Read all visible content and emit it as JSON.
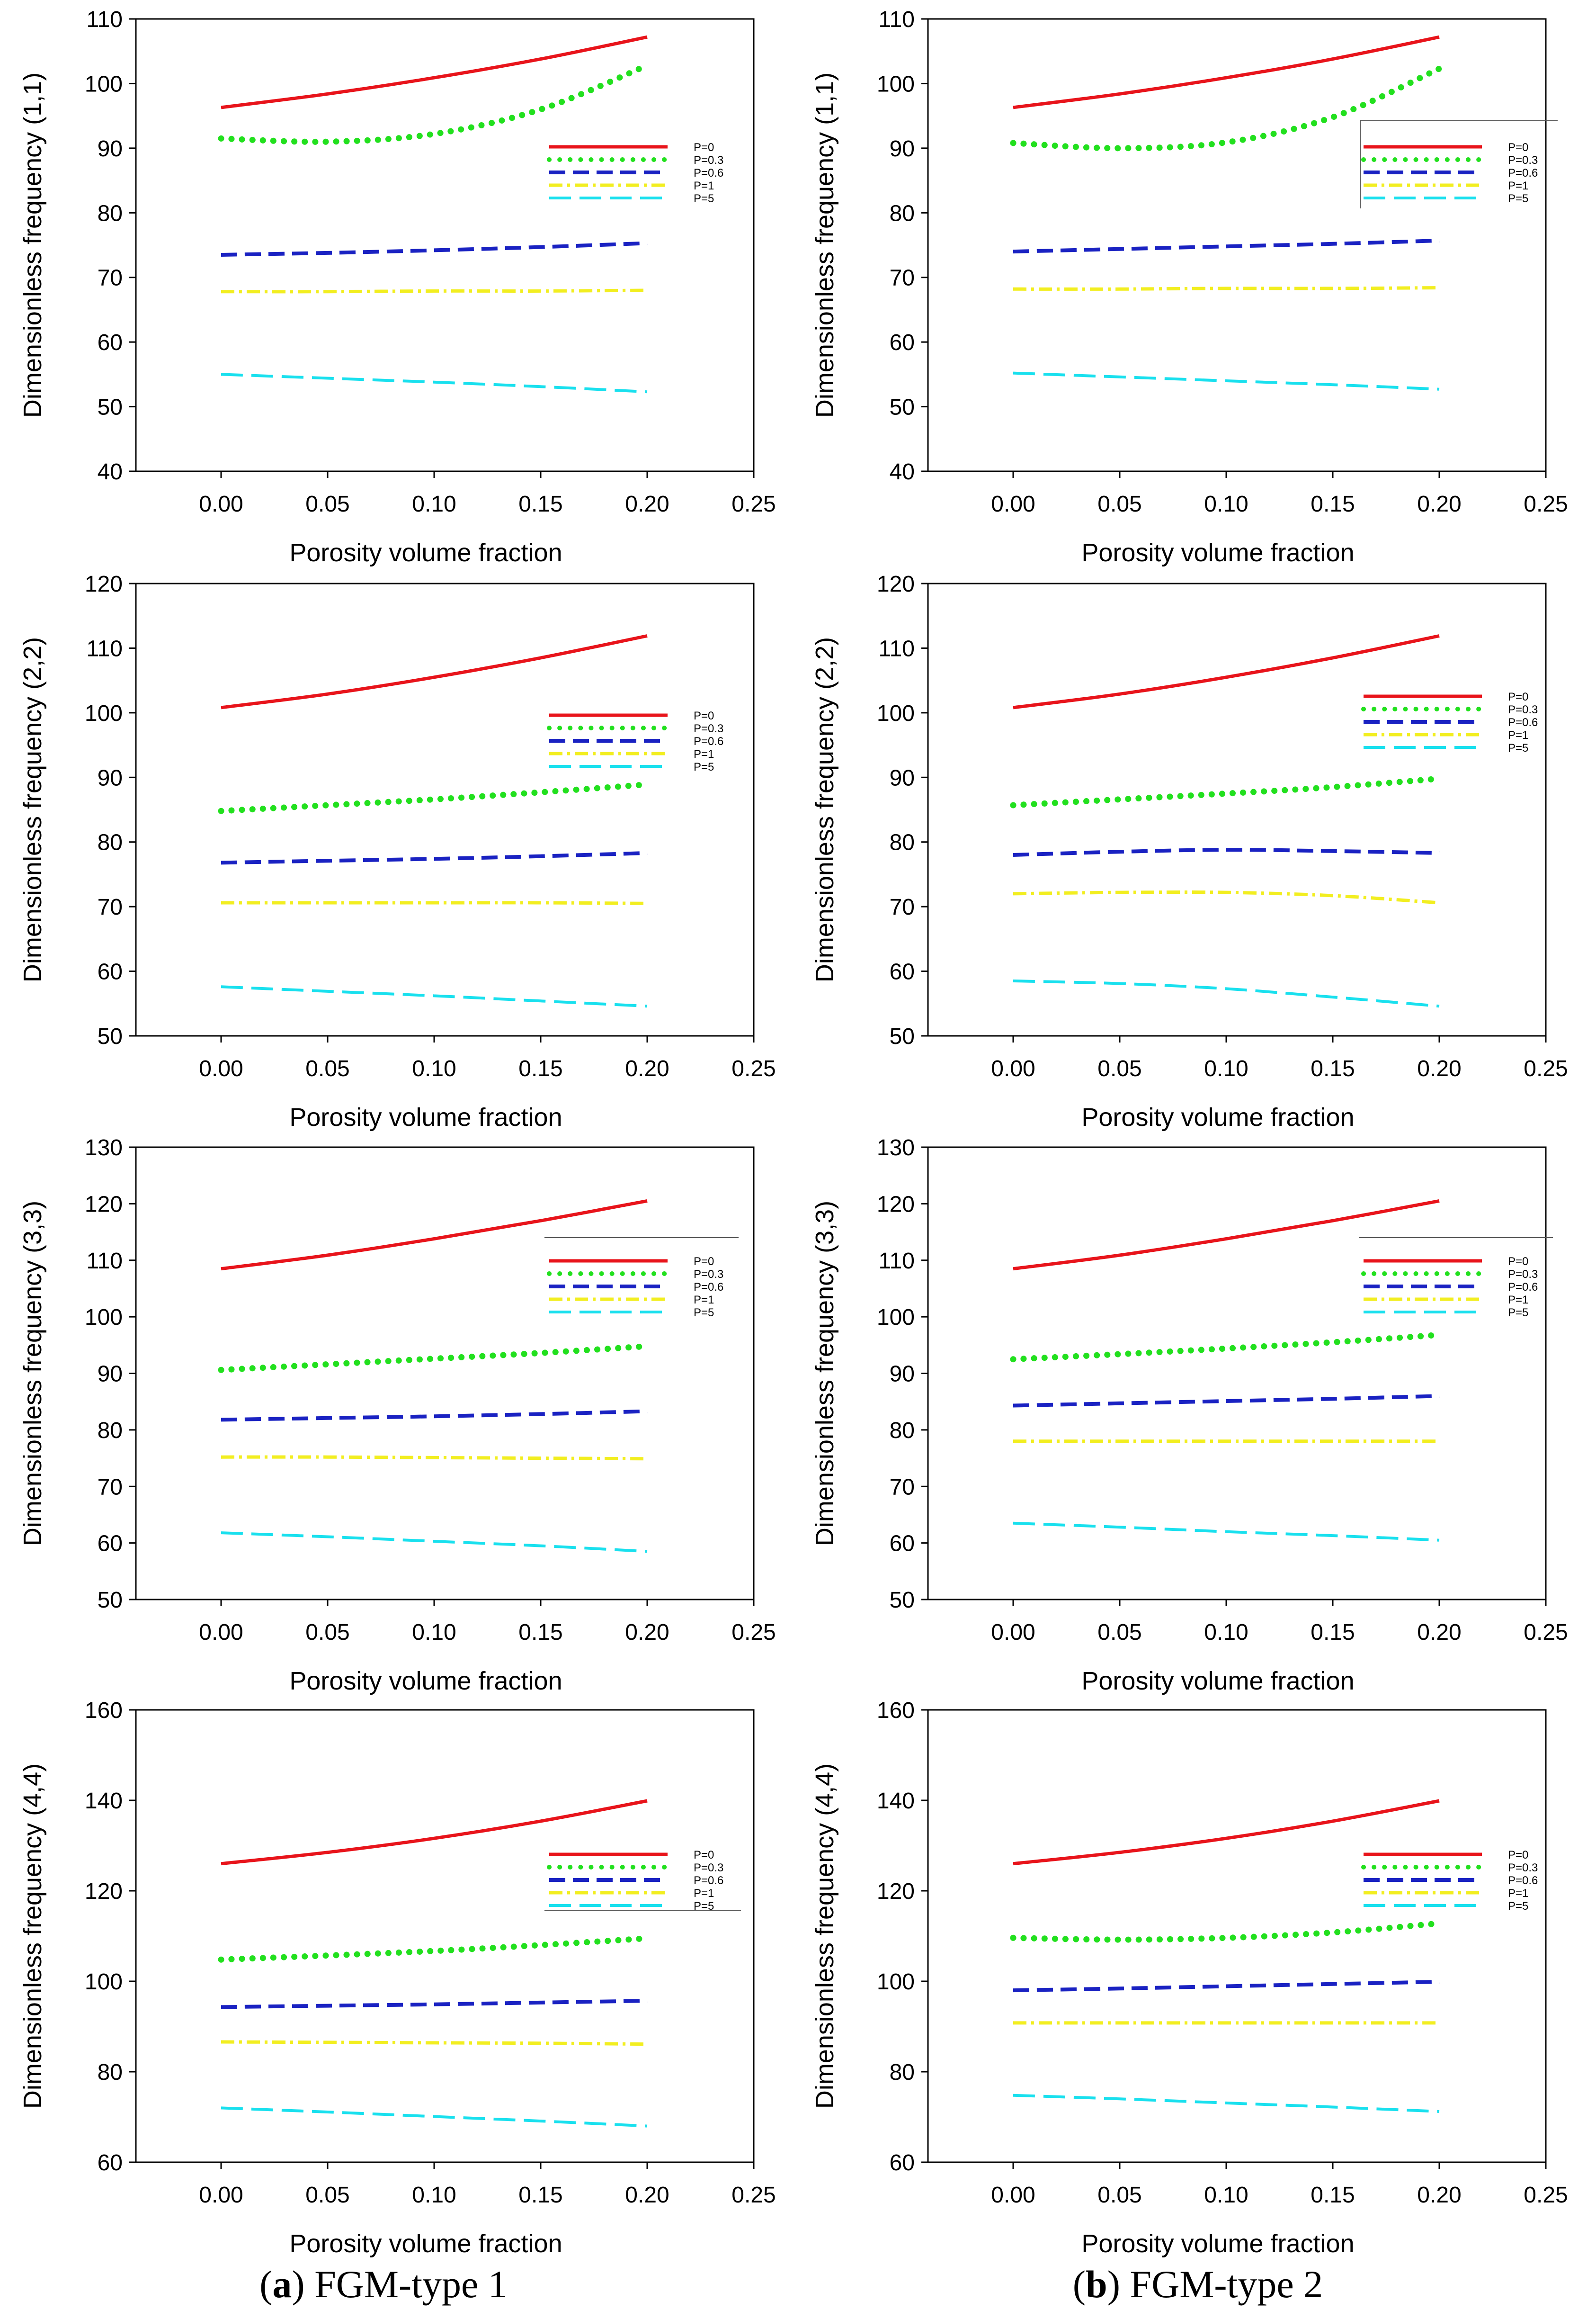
{
  "legend_labels": [
    "P=0",
    "P=0.3",
    "P=0.6",
    "P=1",
    "P=5"
  ],
  "series_styles": [
    {
      "name": "P=0",
      "color": "#e8141b",
      "dash": "solid"
    },
    {
      "name": "P=0.3",
      "color": "#22e01e",
      "dash": "dotted"
    },
    {
      "name": "P=0.6",
      "color": "#1a22c2",
      "dash": "dashed"
    },
    {
      "name": "P=1",
      "color": "#f2ee20",
      "dash": "dashdot"
    },
    {
      "name": "P=5",
      "color": "#19e0ee",
      "dash": "longdash"
    }
  ],
  "captions": {
    "a_letter": "a",
    "a_text": " FGM-type 1",
    "b_letter": "b",
    "b_text": " FGM-type 2"
  },
  "chart_data": [
    {
      "id": "a1",
      "type": "line",
      "xlabel": "Porosity volume fraction",
      "ylabel": "Dimensionless frequency (1,1)",
      "xlim": [
        -0.04,
        0.25
      ],
      "xticks": [
        "0.00",
        "0.05",
        "0.10",
        "0.15",
        "0.20",
        "0.25"
      ],
      "ylim": [
        40,
        110
      ],
      "yticks": [
        "40",
        "50",
        "60",
        "70",
        "80",
        "90",
        "100",
        "110"
      ],
      "x": [
        0,
        0.05,
        0.1,
        0.15,
        0.2
      ],
      "series": [
        {
          "name": "P=0",
          "values": [
            96.3,
            98.4,
            100.9,
            103.8,
            107.2
          ]
        },
        {
          "name": "P=0.3",
          "values": [
            91.5,
            91.0,
            92.2,
            96.0,
            102.8
          ]
        },
        {
          "name": "P=0.6",
          "values": [
            73.5,
            73.8,
            74.2,
            74.7,
            75.3
          ]
        },
        {
          "name": "P=1",
          "values": [
            67.8,
            67.8,
            67.9,
            67.9,
            68.0
          ]
        },
        {
          "name": "P=5",
          "values": [
            55.0,
            54.4,
            53.8,
            53.1,
            52.3
          ]
        }
      ]
    },
    {
      "id": "b1",
      "type": "line",
      "xlabel": "Porosity volume fraction",
      "ylabel": "Dimensionless frequency (1,1)",
      "xlim": [
        -0.04,
        0.25
      ],
      "xticks": [
        "0.00",
        "0.05",
        "0.10",
        "0.15",
        "0.20",
        "0.25"
      ],
      "ylim": [
        40,
        110
      ],
      "yticks": [
        "40",
        "50",
        "60",
        "70",
        "80",
        "90",
        "100",
        "110"
      ],
      "x": [
        0,
        0.05,
        0.1,
        0.15,
        0.2
      ],
      "series": [
        {
          "name": "P=0",
          "values": [
            96.3,
            98.4,
            100.9,
            103.8,
            107.2
          ]
        },
        {
          "name": "P=0.3",
          "values": [
            90.8,
            90.0,
            90.9,
            94.8,
            102.3
          ]
        },
        {
          "name": "P=0.6",
          "values": [
            74.0,
            74.4,
            74.8,
            75.2,
            75.7
          ]
        },
        {
          "name": "P=1",
          "values": [
            68.2,
            68.2,
            68.3,
            68.3,
            68.4
          ]
        },
        {
          "name": "P=5",
          "values": [
            55.2,
            54.6,
            54.0,
            53.4,
            52.7
          ]
        }
      ]
    },
    {
      "id": "a2",
      "type": "line",
      "xlabel": "Porosity volume fraction",
      "ylabel": "Dimensionless frequency (2,2)",
      "xlim": [
        -0.04,
        0.25
      ],
      "xticks": [
        "0.00",
        "0.05",
        "0.10",
        "0.15",
        "0.20",
        "0.25"
      ],
      "ylim": [
        50,
        120
      ],
      "yticks": [
        "50",
        "60",
        "70",
        "80",
        "90",
        "100",
        "110",
        "120"
      ],
      "x": [
        0,
        0.05,
        0.1,
        0.15,
        0.2
      ],
      "series": [
        {
          "name": "P=0",
          "values": [
            100.8,
            102.9,
            105.5,
            108.5,
            111.9
          ]
        },
        {
          "name": "P=0.3",
          "values": [
            84.8,
            85.7,
            86.6,
            87.7,
            88.9
          ]
        },
        {
          "name": "P=0.6",
          "values": [
            76.8,
            77.1,
            77.4,
            77.8,
            78.3
          ]
        },
        {
          "name": "P=1",
          "values": [
            70.6,
            70.6,
            70.6,
            70.6,
            70.5
          ]
        },
        {
          "name": "P=5",
          "values": [
            57.6,
            56.9,
            56.2,
            55.4,
            54.6
          ]
        }
      ]
    },
    {
      "id": "b2",
      "type": "line",
      "xlabel": "Porosity volume fraction",
      "ylabel": "Dimensionless frequency (2,2)",
      "xlim": [
        -0.04,
        0.25
      ],
      "xticks": [
        "0.00",
        "0.05",
        "0.10",
        "0.15",
        "0.20",
        "0.25"
      ],
      "ylim": [
        50,
        120
      ],
      "yticks": [
        "50",
        "60",
        "70",
        "80",
        "90",
        "100",
        "110",
        "120"
      ],
      "x": [
        0,
        0.05,
        0.1,
        0.15,
        0.2
      ],
      "series": [
        {
          "name": "P=0",
          "values": [
            100.8,
            102.9,
            105.5,
            108.5,
            111.9
          ]
        },
        {
          "name": "P=0.3",
          "values": [
            85.7,
            86.6,
            87.5,
            88.5,
            89.8
          ]
        },
        {
          "name": "P=0.6",
          "values": [
            78.0,
            78.5,
            78.8,
            78.6,
            78.3
          ]
        },
        {
          "name": "P=1",
          "values": [
            72.0,
            72.2,
            72.2,
            71.7,
            70.6
          ]
        },
        {
          "name": "P=5",
          "values": [
            58.5,
            58.1,
            57.3,
            56.0,
            54.6
          ]
        }
      ]
    },
    {
      "id": "a3",
      "type": "line",
      "xlabel": "Porosity volume fraction",
      "ylabel": "Dimensionless frequency (3,3)",
      "xlim": [
        -0.04,
        0.25
      ],
      "xticks": [
        "0.00",
        "0.05",
        "0.10",
        "0.15",
        "0.20",
        "0.25"
      ],
      "ylim": [
        50,
        130
      ],
      "yticks": [
        "50",
        "60",
        "70",
        "80",
        "90",
        "100",
        "110",
        "120",
        "130"
      ],
      "x": [
        0,
        0.05,
        0.1,
        0.15,
        0.2
      ],
      "series": [
        {
          "name": "P=0",
          "values": [
            108.5,
            110.9,
            113.8,
            117.0,
            120.5
          ]
        },
        {
          "name": "P=0.3",
          "values": [
            90.6,
            91.6,
            92.6,
            93.6,
            94.8
          ]
        },
        {
          "name": "P=0.6",
          "values": [
            81.8,
            82.1,
            82.4,
            82.8,
            83.3
          ]
        },
        {
          "name": "P=1",
          "values": [
            75.2,
            75.2,
            75.1,
            75.0,
            74.9
          ]
        },
        {
          "name": "P=5",
          "values": [
            61.8,
            61.1,
            60.3,
            59.5,
            58.5
          ]
        }
      ]
    },
    {
      "id": "b3",
      "type": "line",
      "xlabel": "Porosity volume fraction",
      "ylabel": "Dimensionless frequency (3,3)",
      "xlim": [
        -0.04,
        0.25
      ],
      "xticks": [
        "0.00",
        "0.05",
        "0.10",
        "0.15",
        "0.20",
        "0.25"
      ],
      "ylim": [
        50,
        130
      ],
      "yticks": [
        "50",
        "60",
        "70",
        "80",
        "90",
        "100",
        "110",
        "120",
        "130"
      ],
      "x": [
        0,
        0.05,
        0.1,
        0.15,
        0.2
      ],
      "series": [
        {
          "name": "P=0",
          "values": [
            108.5,
            110.9,
            113.8,
            117.0,
            120.5
          ]
        },
        {
          "name": "P=0.3",
          "values": [
            92.5,
            93.4,
            94.4,
            95.5,
            96.8
          ]
        },
        {
          "name": "P=0.6",
          "values": [
            84.3,
            84.7,
            85.1,
            85.5,
            86.0
          ]
        },
        {
          "name": "P=1",
          "values": [
            78.0,
            78.0,
            78.0,
            78.0,
            78.0
          ]
        },
        {
          "name": "P=5",
          "values": [
            63.5,
            62.8,
            62.0,
            61.3,
            60.5
          ]
        }
      ]
    },
    {
      "id": "a4",
      "type": "line",
      "xlabel": "Porosity volume fraction",
      "ylabel": "Dimensionless frequency (4,4)",
      "xlim": [
        -0.04,
        0.25
      ],
      "xticks": [
        "0.00",
        "0.05",
        "0.10",
        "0.15",
        "0.20",
        "0.25"
      ],
      "ylim": [
        60,
        160
      ],
      "yticks": [
        "60",
        "80",
        "100",
        "120",
        "140",
        "160"
      ],
      "x": [
        0,
        0.05,
        0.1,
        0.15,
        0.2
      ],
      "series": [
        {
          "name": "P=0",
          "values": [
            126.0,
            128.5,
            131.6,
            135.4,
            139.9
          ]
        },
        {
          "name": "P=0.3",
          "values": [
            104.8,
            105.7,
            106.7,
            108.0,
            109.5
          ]
        },
        {
          "name": "P=0.6",
          "values": [
            94.3,
            94.6,
            94.9,
            95.3,
            95.7
          ]
        },
        {
          "name": "P=1",
          "values": [
            86.6,
            86.5,
            86.4,
            86.3,
            86.1
          ]
        },
        {
          "name": "P=5",
          "values": [
            72.0,
            71.1,
            70.1,
            69.1,
            68.0
          ]
        }
      ]
    },
    {
      "id": "b4",
      "type": "line",
      "xlabel": "Porosity volume fraction",
      "ylabel": "Dimensionless frequency (4,4)",
      "xlim": [
        -0.04,
        0.25
      ],
      "xticks": [
        "0.00",
        "0.05",
        "0.10",
        "0.15",
        "0.20",
        "0.25"
      ],
      "ylim": [
        60,
        160
      ],
      "yticks": [
        "60",
        "80",
        "100",
        "120",
        "140",
        "160"
      ],
      "x": [
        0,
        0.05,
        0.1,
        0.15,
        0.2
      ],
      "series": [
        {
          "name": "P=0",
          "values": [
            126.0,
            128.5,
            131.6,
            135.4,
            139.9
          ]
        },
        {
          "name": "P=0.3",
          "values": [
            109.6,
            109.2,
            109.6,
            110.8,
            112.8
          ]
        },
        {
          "name": "P=0.6",
          "values": [
            98.0,
            98.4,
            98.9,
            99.4,
            99.9
          ]
        },
        {
          "name": "P=1",
          "values": [
            90.8,
            90.8,
            90.8,
            90.8,
            90.8
          ]
        },
        {
          "name": "P=5",
          "values": [
            74.8,
            74.0,
            73.1,
            72.2,
            71.2
          ]
        }
      ]
    }
  ]
}
